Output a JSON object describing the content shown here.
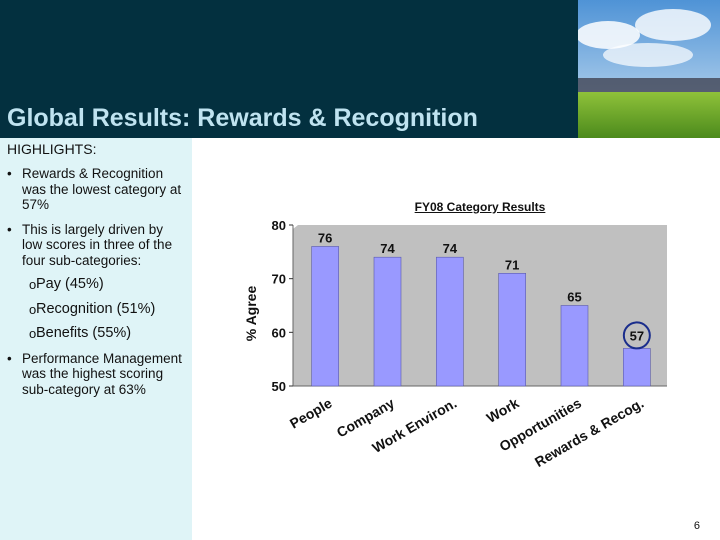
{
  "slide": {
    "title": "Global Results:  Rewards & Recognition",
    "page_number": "6"
  },
  "highlights": {
    "heading": "HIGHLIGHTS:",
    "bullets": [
      "Rewards & Recognition was the lowest category at 57%",
      "This is largely driven by low scores in three of the four sub-categories:"
    ],
    "sub_bullets": [
      "Pay (45%)",
      "Recognition (51%)",
      "Benefits (55%)"
    ],
    "last_bullet": "Performance Management was the highest scoring sub-category at 63%"
  },
  "chart_data": {
    "type": "bar",
    "title": "FY08 Category Results",
    "ylabel": "% Agree",
    "xlabel": "",
    "categories": [
      "People",
      "Company",
      "Work Environ.",
      "Work",
      "Opportunities",
      "Rewards & Recog."
    ],
    "values": [
      76,
      74,
      74,
      71,
      65,
      57
    ],
    "ylim": [
      50,
      80
    ],
    "yticks": [
      50,
      60,
      70,
      80
    ],
    "grid": false,
    "highlighted_category": "Rewards & Recog.",
    "colors": {
      "bar": "#9999ff",
      "plot_background": "#c0c0c0",
      "highlight_ring": "#1a2d8c",
      "header": "#03303f",
      "title": "#bfe3f0",
      "panel": "#dff4f7"
    }
  }
}
